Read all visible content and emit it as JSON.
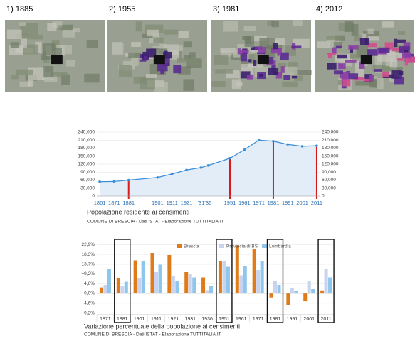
{
  "maps": [
    {
      "label": "1) 1885"
    },
    {
      "label": "2) 1955"
    },
    {
      "label": "3) 1981"
    },
    {
      "label": "4) 2012"
    }
  ],
  "chart_data": [
    {
      "type": "line",
      "title": "Popolazione residente ai censimenti",
      "source": "COMUNE DI BRESCIA - Dati ISTAT - Elaborazione TUTTITALIA.IT",
      "x": [
        1861,
        1871,
        1881,
        1901,
        1911,
        1921,
        1931,
        1936,
        1951,
        1961,
        1971,
        1981,
        1991,
        2001,
        2011
      ],
      "values": [
        54000,
        55000,
        60000,
        70000,
        83000,
        98000,
        107000,
        115000,
        142000,
        174000,
        210000,
        206000,
        194000,
        187000,
        189000
      ],
      "color": "#3b8fd9",
      "area_color": "#e3edf8",
      "xlim": [
        1859,
        2013
      ],
      "ylim": [
        0,
        240000
      ],
      "yticks": [
        {
          "value": 0,
          "label": "0"
        },
        {
          "value": 30000,
          "label": "30,000"
        },
        {
          "value": 60000,
          "label": "60,000"
        },
        {
          "value": 90000,
          "label": "90,000"
        },
        {
          "value": 120000,
          "label": "120,000"
        },
        {
          "value": 150000,
          "label": "150,000"
        },
        {
          "value": 180000,
          "label": "180,000"
        },
        {
          "value": 210000,
          "label": "210,000"
        },
        {
          "value": 240000,
          "label": "240,000"
        }
      ],
      "xticks": [
        1861,
        1871,
        1881,
        1901,
        1911,
        1921,
        {
          "value": 1933.5,
          "label": "'31'36"
        },
        1951,
        1961,
        1971,
        1981,
        1991,
        2001,
        2011
      ],
      "highlight_x": [
        1881,
        1951,
        1981,
        2011
      ],
      "highlight_color": "#d7191c",
      "grid": true
    },
    {
      "type": "bar",
      "title": "Variazione percentuale della popolazione ai censimenti",
      "source": "COMUNE DI BRESCIA - Dati ISTAT - Elaborazione TUTTITALIA.IT",
      "categories": [
        "1871",
        "1881",
        "1901",
        "1911",
        "1921",
        "1931",
        "1936",
        "1951",
        "1961",
        "1971",
        "1981",
        "1991",
        "2001",
        "2011"
      ],
      "series": [
        {
          "name": "Brescia",
          "color": "#e07b1a",
          "values": [
            2.8,
            7,
            15.5,
            19,
            18,
            10,
            7.5,
            15,
            22.5,
            20.8,
            -1.9,
            -5.6,
            -3.7,
            1.4
          ]
        },
        {
          "name": "Provincia di BS",
          "color": "#c9d3f0",
          "values": [
            4,
            3.3,
            7,
            10,
            8,
            9,
            1.5,
            15.3,
            8.5,
            11,
            6,
            2.5,
            6,
            11.5
          ]
        },
        {
          "name": "Lombardia",
          "color": "#8ec6ec",
          "values": [
            11.5,
            5.5,
            15,
            13.5,
            6,
            7.5,
            3.5,
            12.5,
            13,
            15,
            4,
            1,
            2,
            7.5
          ]
        }
      ],
      "ylim": [
        -10,
        24
      ],
      "yticks": [
        {
          "value": -9.2,
          "label": "-9,2%"
        },
        {
          "value": -4.6,
          "label": "-4,6%"
        },
        {
          "value": 0,
          "label": "0,0%"
        },
        {
          "value": 4.6,
          "label": "+4,6%"
        },
        {
          "value": 9.2,
          "label": "+9,2%"
        },
        {
          "value": 13.7,
          "label": "+13,7%"
        },
        {
          "value": 18.3,
          "label": "+18,3%"
        },
        {
          "value": 22.9,
          "label": "+22,9%"
        }
      ],
      "highlight_categories": [
        1,
        7,
        10,
        13
      ],
      "grid": true
    }
  ]
}
